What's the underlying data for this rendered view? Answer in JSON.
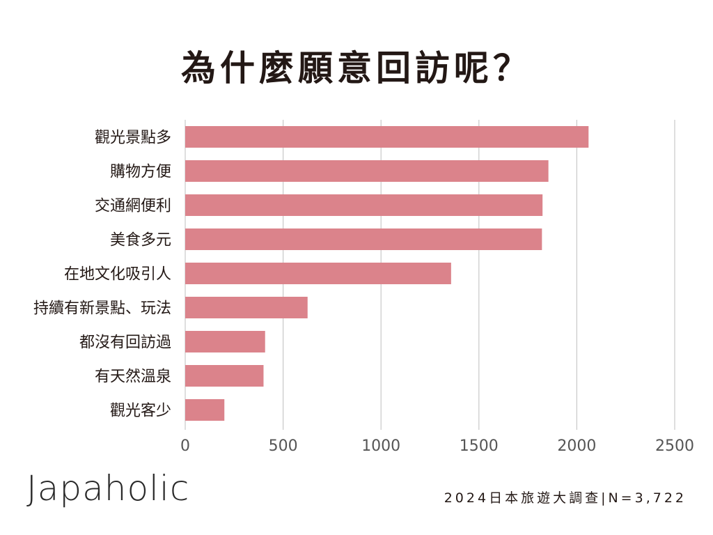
{
  "page": {
    "title": "為什麼願意回訪呢？",
    "brand": "Japaholic",
    "source": "2024日本旅遊大調查|N=3,722"
  },
  "colors": {
    "bar": "#db838b",
    "grid": "#c8c8c8",
    "text": "#231815",
    "axis_text": "#555555"
  },
  "chart_data": {
    "type": "bar",
    "orientation": "horizontal",
    "title": "為什麼願意回訪呢？",
    "xlabel": "",
    "ylabel": "",
    "xlim": [
      0,
      2500
    ],
    "ticks": [
      0,
      500,
      1000,
      1500,
      2000,
      2500
    ],
    "grid": true,
    "legend": "none",
    "categories": [
      "觀光景點多",
      "購物方便",
      "交通網便利",
      "美食多元",
      "在地文化吸引人",
      "持續有新景點、玩法",
      "都沒有回訪過",
      "有天然溫泉",
      "觀光客少"
    ],
    "values": [
      2060,
      1855,
      1825,
      1822,
      1358,
      625,
      408,
      400,
      200
    ]
  }
}
